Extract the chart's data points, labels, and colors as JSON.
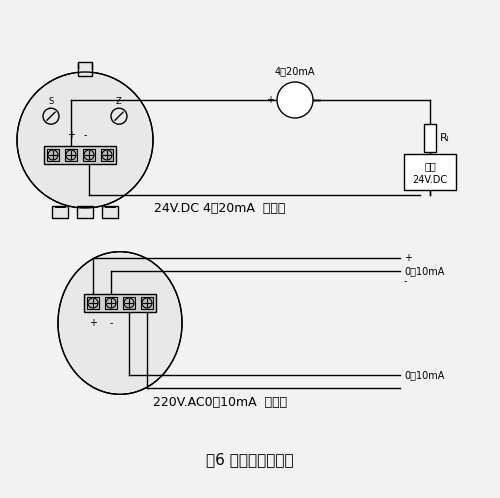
{
  "bg_color": "#f2f2f2",
  "line_color": "#000000",
  "title": "图6 电远传型接线图",
  "label_top": "24V.DC 4～20mA  两线制",
  "label_bottom": "220V.AC0～10mA  四线制",
  "meter_label": "4～20mA",
  "power_label_line1": "电源",
  "power_label_line2": "24V.DC",
  "rl_label": "Rₗ",
  "signal_top_plus": "+",
  "signal_top_label": "0～10mA",
  "signal_top_minus": "-",
  "signal_bottom_label": "0～10mA"
}
